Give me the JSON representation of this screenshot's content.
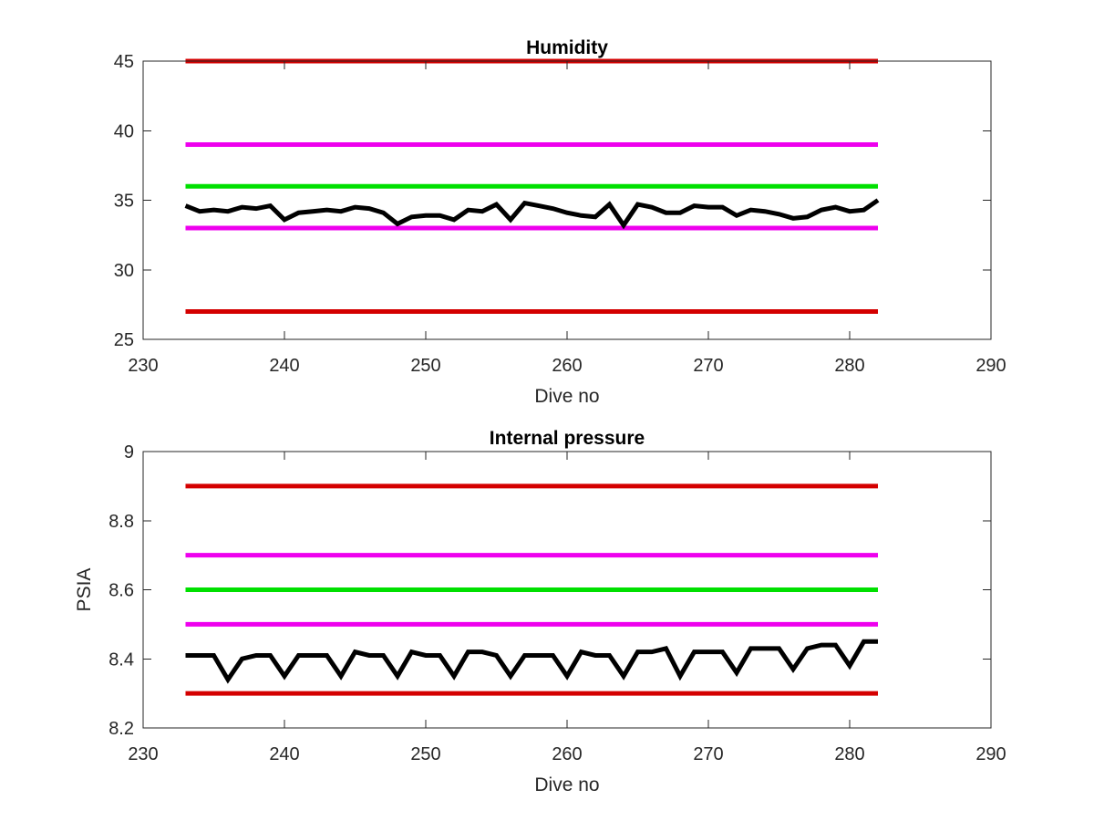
{
  "chart_data": [
    {
      "type": "line",
      "title": "Humidity",
      "xlabel": "Dive no",
      "ylabel": "",
      "xlim": [
        230,
        290
      ],
      "ylim": [
        25,
        45
      ],
      "xticks": [
        230,
        240,
        250,
        260,
        270,
        280,
        290
      ],
      "yticks": [
        25,
        30,
        35,
        40,
        45
      ],
      "xtick_labels": [
        "230",
        "240",
        "250",
        "260",
        "270",
        "280",
        "290"
      ],
      "ytick_labels": [
        "25",
        "30",
        "35",
        "40",
        "45"
      ],
      "grid": false,
      "series": [
        {
          "color": "#d40000",
          "x": [
            233,
            282
          ],
          "y": [
            45,
            45
          ]
        },
        {
          "color": "#ee00ee",
          "x": [
            233,
            282
          ],
          "y": [
            39,
            39
          ]
        },
        {
          "color": "#00e000",
          "x": [
            233,
            282
          ],
          "y": [
            36,
            36
          ]
        },
        {
          "color": "#ee00ee",
          "x": [
            233,
            282
          ],
          "y": [
            33,
            33
          ]
        },
        {
          "color": "#d40000",
          "x": [
            233,
            282
          ],
          "y": [
            27,
            27
          ]
        },
        {
          "color": "#000000",
          "x": [
            233,
            234,
            235,
            236,
            237,
            238,
            239,
            240,
            241,
            242,
            243,
            244,
            245,
            246,
            247,
            248,
            249,
            250,
            251,
            252,
            253,
            254,
            255,
            256,
            257,
            258,
            259,
            260,
            261,
            262,
            263,
            264,
            265,
            266,
            267,
            268,
            269,
            270,
            271,
            272,
            273,
            274,
            275,
            276,
            277,
            278,
            279,
            280,
            281,
            282
          ],
          "y": [
            34.6,
            34.2,
            34.3,
            34.2,
            34.5,
            34.4,
            34.6,
            33.6,
            34.1,
            34.2,
            34.3,
            34.2,
            34.5,
            34.4,
            34.1,
            33.3,
            33.8,
            33.9,
            33.9,
            33.6,
            34.3,
            34.2,
            34.7,
            33.6,
            34.8,
            34.6,
            34.4,
            34.1,
            33.9,
            33.8,
            34.7,
            33.2,
            34.7,
            34.5,
            34.1,
            34.1,
            34.6,
            34.5,
            34.5,
            33.9,
            34.3,
            34.2,
            34.0,
            33.7,
            33.8,
            34.3,
            34.5,
            34.2,
            34.3,
            35.0
          ]
        }
      ]
    },
    {
      "type": "line",
      "title": "Internal pressure",
      "xlabel": "Dive no",
      "ylabel": "PSIA",
      "xlim": [
        230,
        290
      ],
      "ylim": [
        8.2,
        9.0
      ],
      "xticks": [
        230,
        240,
        250,
        260,
        270,
        280,
        290
      ],
      "yticks": [
        8.2,
        8.4,
        8.6,
        8.8,
        9.0
      ],
      "xtick_labels": [
        "230",
        "240",
        "250",
        "260",
        "270",
        "280",
        "290"
      ],
      "ytick_labels": [
        "8.2",
        "8.4",
        "8.6",
        "8.8",
        "9"
      ],
      "grid": false,
      "series": [
        {
          "color": "#d40000",
          "x": [
            233,
            282
          ],
          "y": [
            8.9,
            8.9
          ]
        },
        {
          "color": "#ee00ee",
          "x": [
            233,
            282
          ],
          "y": [
            8.7,
            8.7
          ]
        },
        {
          "color": "#00e000",
          "x": [
            233,
            282
          ],
          "y": [
            8.6,
            8.6
          ]
        },
        {
          "color": "#ee00ee",
          "x": [
            233,
            282
          ],
          "y": [
            8.5,
            8.5
          ]
        },
        {
          "color": "#d40000",
          "x": [
            233,
            282
          ],
          "y": [
            8.3,
            8.3
          ]
        },
        {
          "color": "#000000",
          "x": [
            233,
            234,
            235,
            236,
            237,
            238,
            239,
            240,
            241,
            242,
            243,
            244,
            245,
            246,
            247,
            248,
            249,
            250,
            251,
            252,
            253,
            254,
            255,
            256,
            257,
            258,
            259,
            260,
            261,
            262,
            263,
            264,
            265,
            266,
            267,
            268,
            269,
            270,
            271,
            272,
            273,
            274,
            275,
            276,
            277,
            278,
            279,
            280,
            281,
            282
          ],
          "y": [
            8.41,
            8.41,
            8.41,
            8.34,
            8.4,
            8.41,
            8.41,
            8.35,
            8.41,
            8.41,
            8.41,
            8.35,
            8.42,
            8.41,
            8.41,
            8.35,
            8.42,
            8.41,
            8.41,
            8.35,
            8.42,
            8.42,
            8.41,
            8.35,
            8.41,
            8.41,
            8.41,
            8.35,
            8.42,
            8.41,
            8.41,
            8.35,
            8.42,
            8.42,
            8.43,
            8.35,
            8.42,
            8.42,
            8.42,
            8.36,
            8.43,
            8.43,
            8.43,
            8.37,
            8.43,
            8.44,
            8.44,
            8.38,
            8.45,
            8.45
          ]
        }
      ]
    }
  ]
}
